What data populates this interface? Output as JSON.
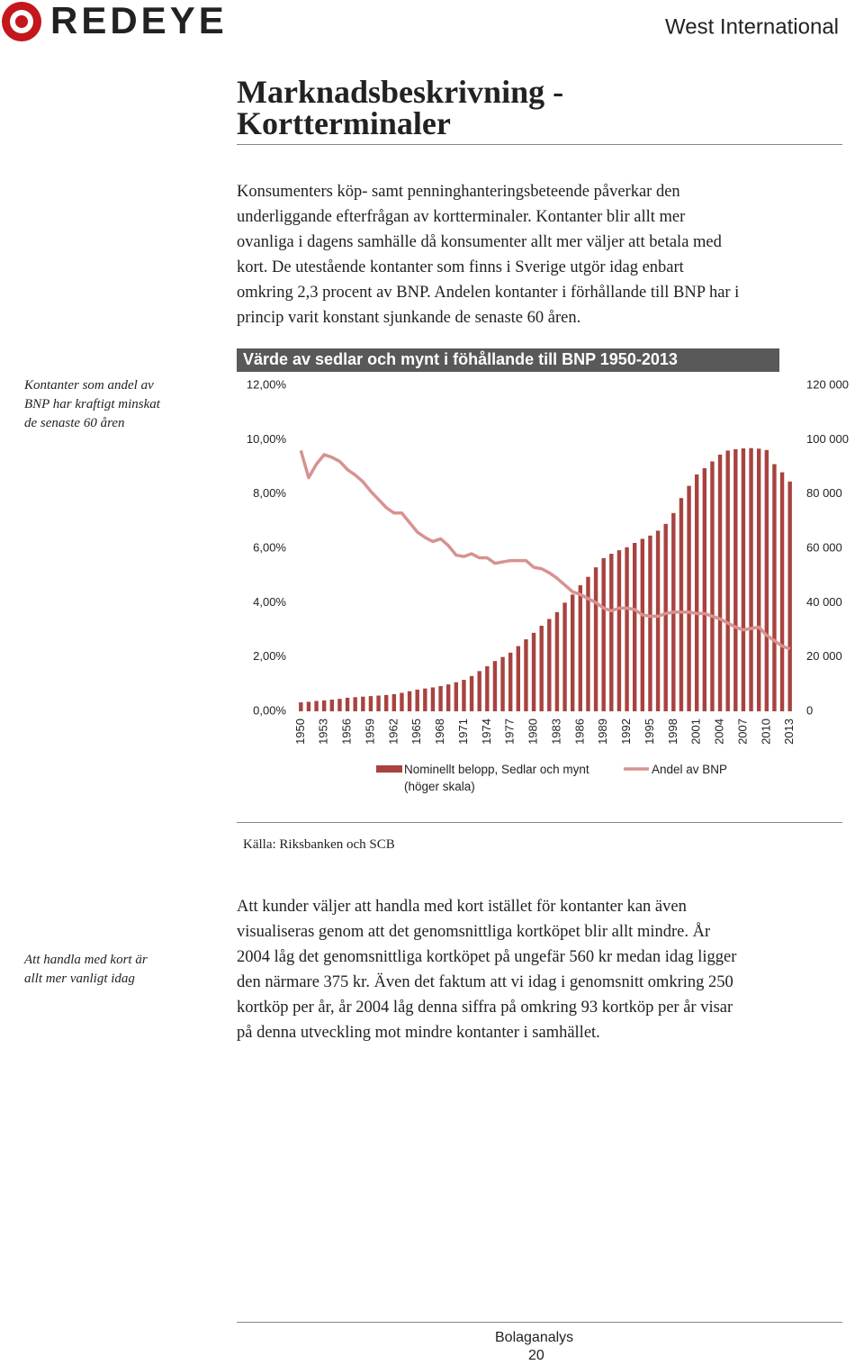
{
  "header": {
    "brand": "REDEYE",
    "company": "West International"
  },
  "title": [
    "Marknadsbeskrivning -",
    "Kortterminaler"
  ],
  "intro": [
    "Konsumenters köp- samt penninghanteringsbeteende påverkar den",
    "underliggande efterfrågan av kortterminaler. Kontanter blir allt mer",
    "ovanliga i dagens samhälle då konsumenter allt mer väljer att betala med",
    "kort. De utestående kontanter som finns i Sverige utgör idag enbart",
    "omkring 2,3 procent av BNP. Andelen kontanter i förhållande till BNP har i",
    "princip varit konstant sjunkande de senaste 60 åren."
  ],
  "notes": [
    [
      "Kontanter som andel av",
      "BNP har kraftigt minskat",
      "de senaste 60 åren"
    ],
    [
      "Att handla med kort är",
      "allt mer vanligt idag"
    ]
  ],
  "chart_data": {
    "type": "combo",
    "title": "Värde av sedlar och mynt i föhållande till BNP 1950-2013",
    "categories": [
      "1950",
      null,
      null,
      "1953",
      null,
      null,
      "1956",
      null,
      null,
      "1959",
      null,
      null,
      "1962",
      null,
      null,
      "1965",
      null,
      null,
      "1968",
      null,
      null,
      "1971",
      null,
      null,
      "1974",
      null,
      null,
      "1977",
      null,
      null,
      "1980",
      null,
      null,
      "1983",
      null,
      null,
      "1986",
      null,
      null,
      "1989",
      null,
      null,
      "1992",
      null,
      null,
      "1995",
      null,
      null,
      "1998",
      null,
      null,
      "2001",
      null,
      null,
      "2004",
      null,
      null,
      "2007",
      null,
      null,
      "2010",
      null,
      null,
      "2013"
    ],
    "series": [
      {
        "name": "Nominellt belopp, Sedlar och mynt (höger skala)",
        "type": "bar",
        "axis": "y2",
        "color": "#a8433f",
        "values": [
          3300,
          3500,
          3800,
          4000,
          4300,
          4600,
          5000,
          5200,
          5400,
          5600,
          5800,
          6000,
          6300,
          6800,
          7400,
          8000,
          8400,
          8800,
          9300,
          9900,
          10700,
          11600,
          13000,
          14800,
          16600,
          18500,
          20000,
          21600,
          24000,
          26500,
          28900,
          31500,
          34000,
          36500,
          40000,
          43000,
          46400,
          49500,
          53000,
          56400,
          58000,
          59300,
          60400,
          62000,
          63500,
          64700,
          66500,
          69000,
          73000,
          78500,
          83000,
          87200,
          89500,
          92000,
          94500,
          96000,
          96500,
          96800,
          96900,
          96700,
          96200,
          91000,
          88000,
          84600
        ]
      },
      {
        "name": "Andel av BNP",
        "type": "line",
        "color": "#d7928f",
        "values": [
          9.6,
          8.6,
          9.1,
          9.45,
          9.35,
          9.2,
          8.9,
          8.7,
          8.45,
          8.1,
          7.8,
          7.5,
          7.3,
          7.3,
          6.95,
          6.6,
          6.4,
          6.25,
          6.35,
          6.1,
          5.75,
          5.7,
          5.8,
          5.65,
          5.65,
          5.45,
          5.5,
          5.55,
          5.55,
          5.55,
          5.3,
          5.25,
          5.1,
          4.9,
          4.65,
          4.4,
          4.3,
          4.15,
          4.0,
          3.8,
          3.7,
          3.8,
          3.8,
          3.75,
          3.55,
          3.5,
          3.5,
          3.6,
          3.65,
          3.65,
          3.65,
          3.6,
          3.6,
          3.5,
          3.4,
          3.25,
          3.1,
          3.0,
          3.05,
          3.1,
          2.8,
          2.6,
          2.4,
          2.3
        ]
      }
    ],
    "ylim": [
      0,
      12
    ],
    "yticks": [
      {
        "value": 0,
        "label": "0,00%"
      },
      {
        "value": 2,
        "label": "2,00%"
      },
      {
        "value": 4,
        "label": "4,00%"
      },
      {
        "value": 6,
        "label": "6,00%"
      },
      {
        "value": 8,
        "label": "8,00%"
      },
      {
        "value": 10,
        "label": "10,00%"
      },
      {
        "value": 12,
        "label": "12,00%"
      }
    ],
    "y2lim": [
      0,
      120000
    ],
    "y2ticks": [
      0,
      {
        "value": 20000,
        "label": "20 000"
      },
      {
        "value": 40000,
        "label": "40 000"
      },
      {
        "value": 60000,
        "label": "60 000"
      },
      {
        "value": 80000,
        "label": "80 000"
      },
      {
        "value": 100000,
        "label": "100 000"
      },
      {
        "value": 120000,
        "label": "120 000"
      }
    ]
  },
  "source": "Källa: Riksbanken och SCB",
  "body": [
    "Att kunder väljer att handla med kort istället för kontanter kan även",
    "visualiseras genom att det genomsnittliga kortköpet blir allt mindre. År",
    "2004 låg det genomsnittliga kortköpet på ungefär 560 kr medan idag ligger",
    "den närmare 375 kr. Även det faktum att vi idag i genomsnitt omkring 250",
    "kortköp per år, år 2004 låg denna siffra på omkring 93 kortköp per år visar",
    "på denna utveckling mot mindre kontanter i samhället."
  ],
  "footer": {
    "section": "Bolaganalys",
    "page": 20
  }
}
